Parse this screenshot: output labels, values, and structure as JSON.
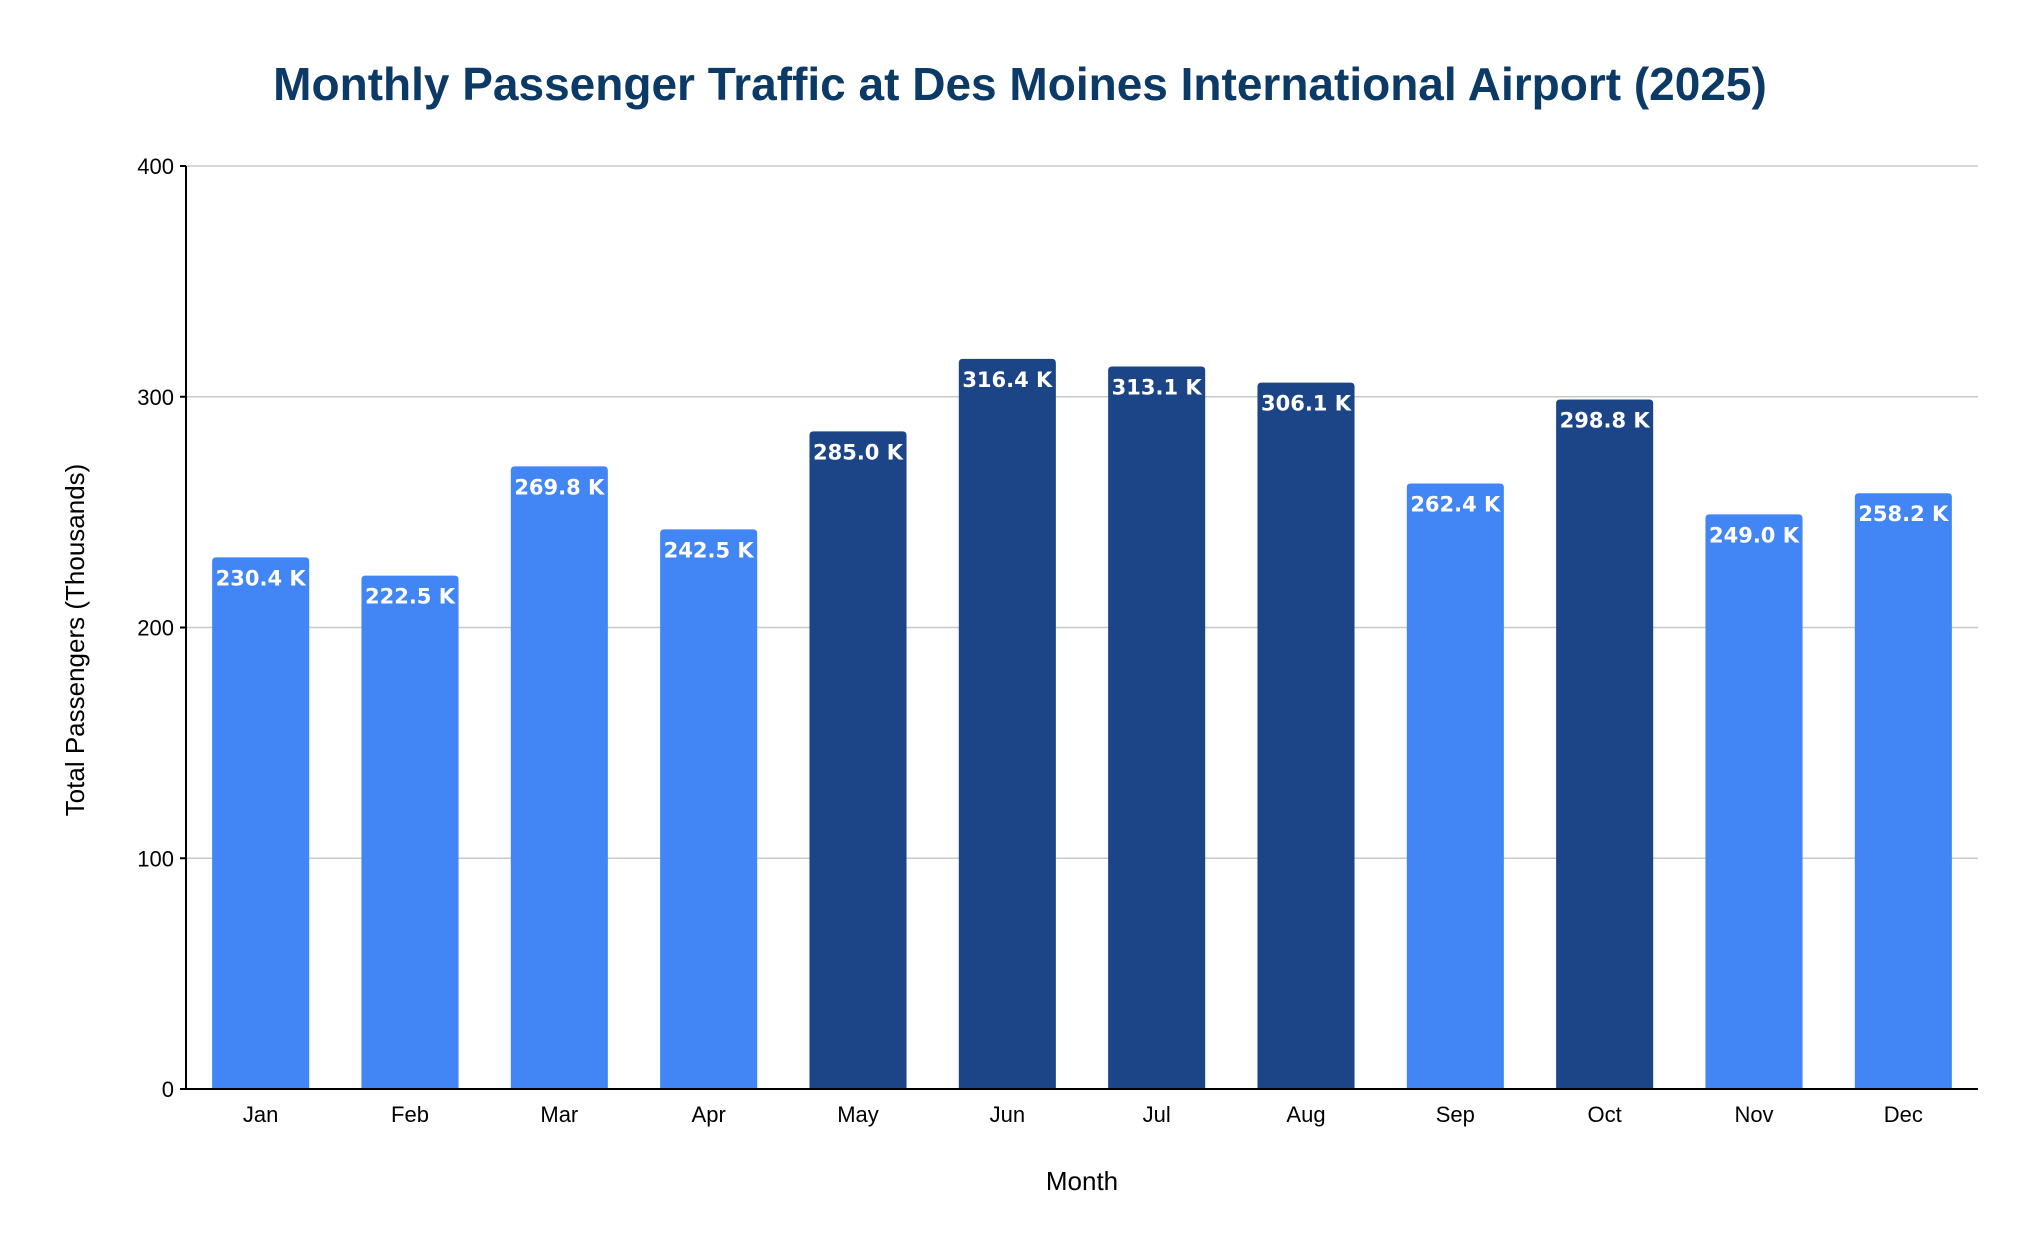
{
  "chart_data": {
    "type": "bar",
    "title": "Monthly Passenger Traffic at Des Moines International Airport (2025)",
    "xlabel": "Month",
    "ylabel": "Total Passengers (Thousands)",
    "categories": [
      "Jan",
      "Feb",
      "Mar",
      "Apr",
      "May",
      "Jun",
      "Jul",
      "Aug",
      "Sep",
      "Oct",
      "Nov",
      "Dec"
    ],
    "values": [
      230.4,
      222.5,
      269.8,
      242.5,
      285.0,
      316.4,
      313.1,
      306.1,
      262.4,
      298.8,
      249.0,
      258.2
    ],
    "data_labels": [
      "230.4 K",
      "222.5 K",
      "269.8 K",
      "242.5 K",
      "285.0 K",
      "316.4 K",
      "313.1 K",
      "306.1 K",
      "262.4 K",
      "298.8 K",
      "249.0 K",
      "258.2 K"
    ],
    "ylim": [
      0,
      400
    ],
    "yticks": [
      0,
      100,
      200,
      300,
      400
    ],
    "ytick_labels": [
      "0",
      "100",
      "200",
      "300",
      "400"
    ],
    "grid": true,
    "legend": "none",
    "highlight_months": [
      "May",
      "Jun",
      "Jul",
      "Aug",
      "Oct"
    ],
    "colors": {
      "bar": "#4285f4",
      "bar_highlight": "#1c4587",
      "title": "#0b3a66",
      "grid": "#c8c8c8",
      "axis": "#000000"
    }
  }
}
